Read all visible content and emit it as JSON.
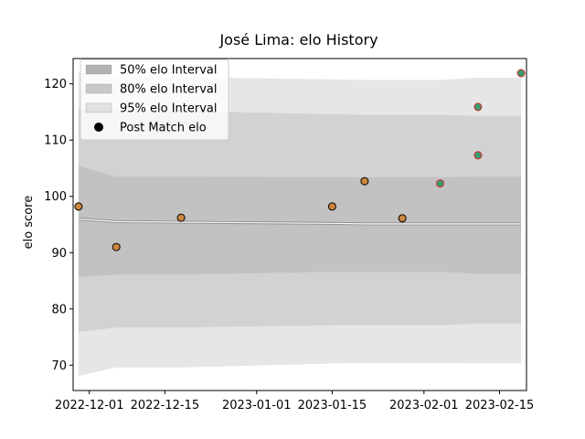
{
  "chart_data": {
    "type": "area",
    "title": "José Lima: elo History",
    "xlabel": "",
    "ylabel": "elo score",
    "x_tick_labels": [
      "2022-12-01",
      "2022-12-15",
      "2023-01-01",
      "2023-01-15",
      "2023-02-01",
      "2023-02-15"
    ],
    "x_ticks": [
      "2022-12-01",
      "2022-12-15",
      "2023-01-01",
      "2023-01-15",
      "2023-02-01",
      "2023-02-15"
    ],
    "xlim": [
      "2022-11-28",
      "2023-02-20"
    ],
    "y_ticks": [
      70,
      80,
      90,
      100,
      110,
      120
    ],
    "ylim": [
      65.5,
      124.5
    ],
    "grid": false,
    "legend_position": "top-left",
    "legend": [
      "50% elo Interval",
      "80% elo Interval",
      "95% elo Interval",
      "Post Match elo"
    ],
    "bands": {
      "x": [
        "2022-11-29",
        "2022-12-06",
        "2022-12-18",
        "2023-01-15",
        "2023-01-21",
        "2023-01-28",
        "2023-02-04",
        "2023-02-11",
        "2023-02-19"
      ],
      "mean": [
        96.0,
        95.5,
        95.4,
        95.2,
        95.1,
        95.1,
        95.1,
        95.1,
        95.1
      ],
      "interval_95": {
        "upper": [
          122.0,
          121.3,
          121.2,
          120.8,
          120.7,
          120.7,
          120.7,
          121.1,
          121.1
        ],
        "lower": [
          68.1,
          69.6,
          69.6,
          70.3,
          70.4,
          70.4,
          70.4,
          70.3,
          70.3
        ]
      },
      "interval_80": {
        "upper": [
          115.5,
          115.3,
          115.2,
          114.6,
          114.5,
          114.5,
          114.5,
          114.3,
          114.3
        ],
        "lower": [
          75.9,
          76.7,
          76.7,
          77.1,
          77.1,
          77.1,
          77.1,
          77.4,
          77.4
        ]
      },
      "interval_50": {
        "upper": [
          105.4,
          103.5,
          103.5,
          103.4,
          103.4,
          103.4,
          103.4,
          103.5,
          103.5
        ],
        "lower": [
          85.7,
          86.1,
          86.1,
          86.6,
          86.6,
          86.6,
          86.6,
          86.2,
          86.2
        ]
      }
    },
    "points": [
      {
        "x": "2022-11-29",
        "y": 98.2,
        "color": "#cd853f"
      },
      {
        "x": "2022-12-06",
        "y": 91.0,
        "color": "#cd853f"
      },
      {
        "x": "2022-12-18",
        "y": 96.2,
        "color": "#cd853f"
      },
      {
        "x": "2023-01-15",
        "y": 98.2,
        "color": "#cd853f"
      },
      {
        "x": "2023-01-21",
        "y": 102.7,
        "color": "#cd853f"
      },
      {
        "x": "2023-01-28",
        "y": 96.1,
        "color": "#cd853f"
      },
      {
        "x": "2023-02-04",
        "y": 102.3,
        "color": "#3c9a6e"
      },
      {
        "x": "2023-02-11",
        "y": 107.3,
        "color": "#3c9a6e"
      },
      {
        "x": "2023-02-11",
        "y": 115.9,
        "color": "#3c9a6e"
      },
      {
        "x": "2023-02-19",
        "y": 121.9,
        "color": "#3c9a6e"
      }
    ],
    "colors": {
      "band": "#808080",
      "mean_line": "#ffffff",
      "point_outline_orange": "#000000",
      "point_outline_green": "#d62728"
    }
  }
}
